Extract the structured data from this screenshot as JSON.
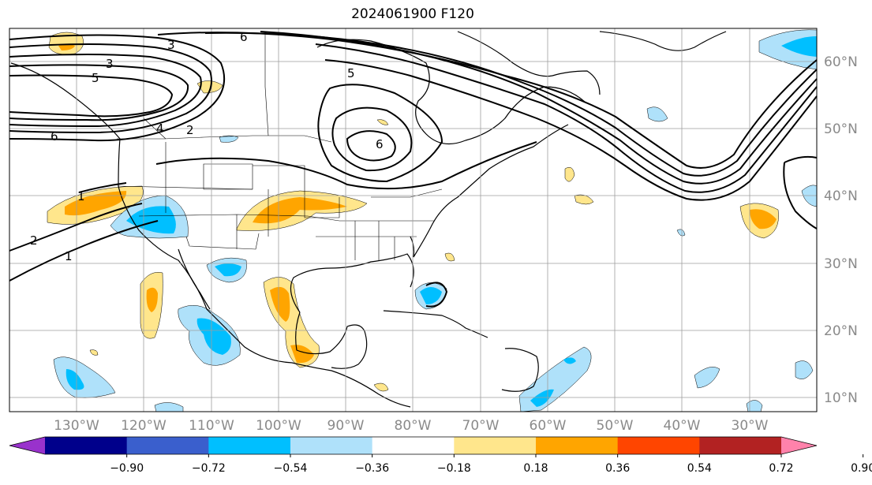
{
  "title": "2024061900 F120",
  "lon_labels": [
    "130°W",
    "120°W",
    "110°W",
    "100°W",
    "90°W",
    "80°W",
    "70°W",
    "60°W",
    "50°W",
    "40°W",
    "30°W"
  ],
  "lat_labels": [
    "60°N",
    "50°N",
    "40°N",
    "30°N",
    "20°N",
    "10°N"
  ],
  "colorbar": {
    "colors": [
      "#9932cc",
      "#00008b",
      "#3a5fcd",
      "#00bfff",
      "#afe1fa",
      "#ffffff",
      "#ffe68c",
      "#ffa500",
      "#ff4500",
      "#b22222",
      "#ff82ab"
    ],
    "tick_labels": [
      "−0.90",
      "−0.72",
      "−0.54",
      "−0.36",
      "−0.18",
      "0.18",
      "0.36",
      "0.54",
      "0.72",
      "0.90"
    ]
  },
  "contour_labels": [
    "3",
    "6",
    "3",
    "5",
    "5",
    "4",
    "2",
    "6",
    "6",
    "1",
    "2",
    "1"
  ]
}
